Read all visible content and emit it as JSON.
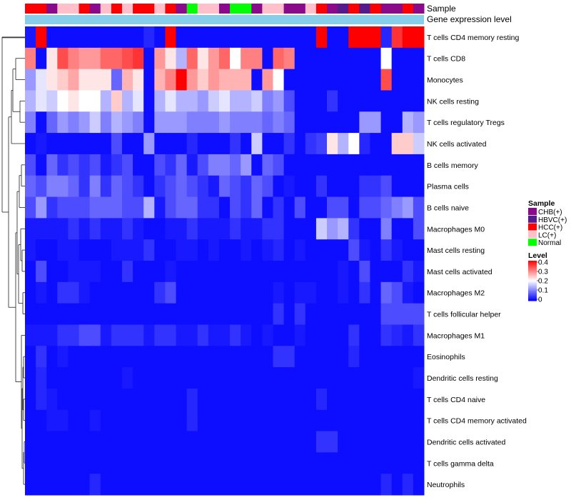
{
  "chart_data": {
    "type": "heatmap",
    "title": "",
    "annotation_tracks": [
      "Sample",
      "Gene expression level"
    ],
    "rows": [
      "T cells CD4 memory resting",
      "T cells CD8",
      "Monocytes",
      "NK cells resting",
      "T cells regulatory  Tregs",
      "NK cells activated",
      "B cells memory",
      "Plasma cells",
      "B cells naive",
      "Macrophages M0",
      "Mast cells resting",
      "Mast cells activated",
      "Macrophages M2",
      "T cells follicular helper",
      "Macrophages M1",
      "Eosinophils",
      "Dendritic cells resting",
      "T cells CD4 naive",
      "T cells CD4 memory activated",
      "Dendritic cells activated",
      "T cells gamma delta",
      "Neutrophils"
    ],
    "sample_classes": [
      "HCC(+)",
      "HCC(+)",
      "CHB(+)",
      "LC(+)",
      "LC(+)",
      "HCC(+)",
      "CHB(+)",
      "LC(+)",
      "HCC(+)",
      "LC(+)",
      "HCC(+)",
      "HCC(+)",
      "LC(+)",
      "HCC(+)",
      "CHB(+)",
      "Normal",
      "LC(+)",
      "LC(+)",
      "CHB(+)",
      "Normal",
      "Normal",
      "CHB(+)",
      "LC(+)",
      "LC(+)",
      "CHB(+)",
      "CHB(+)",
      "LC(+)",
      "HCC(+)",
      "CHB(+)",
      "HBVC(+)",
      "HCC(+)",
      "HBVC(+)",
      "HCC(+)",
      "CHB(+)",
      "CHB(+)",
      "HCC(+)",
      "CHB(+)"
    ],
    "values": [
      [
        0.02,
        0.4,
        0.01,
        0.01,
        0.01,
        0.01,
        0.01,
        0.01,
        0.01,
        0.01,
        0.01,
        0.03,
        0.01,
        0.4,
        0.01,
        0.01,
        0.01,
        0.01,
        0.01,
        0.01,
        0.01,
        0.01,
        0.01,
        0.01,
        0.01,
        0.01,
        0.01,
        0.4,
        0.01,
        0.01,
        0.4,
        0.4,
        0.4,
        0.03,
        0.36,
        0.4,
        0.4
      ],
      [
        0.3,
        0.01,
        0.22,
        0.34,
        0.3,
        0.28,
        0.28,
        0.32,
        0.32,
        0.34,
        0.36,
        0.01,
        0.28,
        0.22,
        0.14,
        0.32,
        0.22,
        0.28,
        0.32,
        0.2,
        0.3,
        0.3,
        0.01,
        0.32,
        0.3,
        0.01,
        0.01,
        0.01,
        0.01,
        0.01,
        0.01,
        0.01,
        0.01,
        0.2,
        0.01,
        0.01,
        0.01
      ],
      [
        0.12,
        0.18,
        0.22,
        0.24,
        0.27,
        0.22,
        0.22,
        0.22,
        0.08,
        0.26,
        0.22,
        0.01,
        0.26,
        0.3,
        0.4,
        0.28,
        0.24,
        0.28,
        0.26,
        0.26,
        0.26,
        0.01,
        0.28,
        0.2,
        0.01,
        0.01,
        0.01,
        0.01,
        0.01,
        0.01,
        0.01,
        0.01,
        0.01,
        0.34,
        0.01,
        0.01,
        0.01
      ],
      [
        0.14,
        0.18,
        0.16,
        0.2,
        0.22,
        0.2,
        0.2,
        0.14,
        0.24,
        0.14,
        0.18,
        0.01,
        0.14,
        0.18,
        0.14,
        0.14,
        0.12,
        0.16,
        0.18,
        0.14,
        0.14,
        0.16,
        0.1,
        0.12,
        0.06,
        0.01,
        0.01,
        0.01,
        0.04,
        0.01,
        0.01,
        0.01,
        0.01,
        0.01,
        0.01,
        0.01,
        0.01
      ],
      [
        0.1,
        0.01,
        0.08,
        0.12,
        0.1,
        0.12,
        0.16,
        0.1,
        0.14,
        0.12,
        0.1,
        0.01,
        0.12,
        0.12,
        0.12,
        0.1,
        0.1,
        0.1,
        0.12,
        0.1,
        0.1,
        0.1,
        0.08,
        0.1,
        0.08,
        0.01,
        0.01,
        0.01,
        0.01,
        0.01,
        0.01,
        0.12,
        0.12,
        0.01,
        0.01,
        0.14,
        0.12
      ],
      [
        0.01,
        0.02,
        0.01,
        0.01,
        0.01,
        0.01,
        0.01,
        0.01,
        0.06,
        0.01,
        0.01,
        0.12,
        0.01,
        0.01,
        0.01,
        0.03,
        0.01,
        0.01,
        0.01,
        0.04,
        0.01,
        0.16,
        0.01,
        0.01,
        0.04,
        0.01,
        0.04,
        0.05,
        0.22,
        0.14,
        0.2,
        0.03,
        0.01,
        0.01,
        0.24,
        0.24,
        0.16
      ],
      [
        0.06,
        0.01,
        0.08,
        0.04,
        0.06,
        0.04,
        0.06,
        0.02,
        0.04,
        0.06,
        0.01,
        0.01,
        0.06,
        0.04,
        0.08,
        0.02,
        0.06,
        0.1,
        0.1,
        0.08,
        0.12,
        0.01,
        0.08,
        0.06,
        0.01,
        0.01,
        0.01,
        0.01,
        0.01,
        0.01,
        0.01,
        0.01,
        0.01,
        0.01,
        0.01,
        0.01,
        0.01
      ],
      [
        0.08,
        0.06,
        0.1,
        0.1,
        0.08,
        0.04,
        0.1,
        0.04,
        0.08,
        0.06,
        0.04,
        0.01,
        0.04,
        0.06,
        0.08,
        0.06,
        0.04,
        0.02,
        0.08,
        0.06,
        0.04,
        0.08,
        0.06,
        0.01,
        0.02,
        0.01,
        0.01,
        0.04,
        0.01,
        0.01,
        0.01,
        0.04,
        0.04,
        0.06,
        0.01,
        0.01,
        0.01
      ],
      [
        0.06,
        0.12,
        0.04,
        0.06,
        0.06,
        0.06,
        0.08,
        0.08,
        0.08,
        0.06,
        0.06,
        0.14,
        0.02,
        0.06,
        0.08,
        0.08,
        0.04,
        0.04,
        0.01,
        0.06,
        0.04,
        0.08,
        0.01,
        0.04,
        0.01,
        0.06,
        0.01,
        0.01,
        0.06,
        0.06,
        0.01,
        0.06,
        0.06,
        0.08,
        0.1,
        0.12,
        0.06
      ],
      [
        0.02,
        0.02,
        0.02,
        0.02,
        0.04,
        0.02,
        0.04,
        0.02,
        0.02,
        0.04,
        0.02,
        0.01,
        0.01,
        0.02,
        0.02,
        0.04,
        0.02,
        0.02,
        0.02,
        0.04,
        0.02,
        0.02,
        0.04,
        0.04,
        0.01,
        0.01,
        0.01,
        0.16,
        0.12,
        0.14,
        0.04,
        0.01,
        0.01,
        0.1,
        0.01,
        0.01,
        0.06
      ],
      [
        0.02,
        0.01,
        0.01,
        0.02,
        0.02,
        0.01,
        0.01,
        0.01,
        0.02,
        0.02,
        0.02,
        0.04,
        0.01,
        0.01,
        0.02,
        0.02,
        0.01,
        0.02,
        0.01,
        0.01,
        0.02,
        0.01,
        0.02,
        0.03,
        0.01,
        0.02,
        0.01,
        0.01,
        0.01,
        0.01,
        0.06,
        0.02,
        0.01,
        0.04,
        0.02,
        0.01,
        0.01
      ],
      [
        0.01,
        0.06,
        0.01,
        0.01,
        0.02,
        0.02,
        0.02,
        0.01,
        0.01,
        0.04,
        0.01,
        0.01,
        0.01,
        0.02,
        0.01,
        0.01,
        0.01,
        0.01,
        0.01,
        0.01,
        0.01,
        0.01,
        0.01,
        0.01,
        0.01,
        0.01,
        0.01,
        0.01,
        0.01,
        0.02,
        0.01,
        0.06,
        0.01,
        0.01,
        0.01,
        0.04,
        0.02
      ],
      [
        0.01,
        0.02,
        0.01,
        0.04,
        0.04,
        0.02,
        0.01,
        0.01,
        0.01,
        0.01,
        0.01,
        0.01,
        0.04,
        0.06,
        0.01,
        0.01,
        0.01,
        0.01,
        0.01,
        0.01,
        0.01,
        0.01,
        0.01,
        0.02,
        0.01,
        0.02,
        0.02,
        0.01,
        0.01,
        0.02,
        0.01,
        0.04,
        0.01,
        0.08,
        0.06,
        0.02,
        0.01
      ],
      [
        0.01,
        0.01,
        0.01,
        0.01,
        0.01,
        0.01,
        0.01,
        0.01,
        0.01,
        0.01,
        0.01,
        0.01,
        0.01,
        0.01,
        0.01,
        0.01,
        0.01,
        0.01,
        0.01,
        0.01,
        0.01,
        0.01,
        0.01,
        0.04,
        0.01,
        0.04,
        0.01,
        0.01,
        0.01,
        0.01,
        0.01,
        0.01,
        0.01,
        0.06,
        0.06,
        0.06,
        0.06
      ],
      [
        0.02,
        0.02,
        0.02,
        0.04,
        0.04,
        0.06,
        0.06,
        0.02,
        0.04,
        0.04,
        0.04,
        0.02,
        0.04,
        0.04,
        0.02,
        0.02,
        0.04,
        0.02,
        0.02,
        0.04,
        0.02,
        0.01,
        0.02,
        0.01,
        0.01,
        0.02,
        0.01,
        0.01,
        0.01,
        0.01,
        0.04,
        0.01,
        0.01,
        0.04,
        0.03,
        0.02,
        0.04
      ],
      [
        0.01,
        0.04,
        0.01,
        0.02,
        0.01,
        0.01,
        0.01,
        0.01,
        0.01,
        0.01,
        0.01,
        0.01,
        0.01,
        0.01,
        0.01,
        0.01,
        0.01,
        0.01,
        0.01,
        0.01,
        0.01,
        0.01,
        0.01,
        0.04,
        0.04,
        0.01,
        0.01,
        0.01,
        0.01,
        0.01,
        0.03,
        0.01,
        0.01,
        0.01,
        0.01,
        0.01,
        0.01
      ],
      [
        0.01,
        0.03,
        0.01,
        0.01,
        0.01,
        0.01,
        0.01,
        0.01,
        0.01,
        0.02,
        0.01,
        0.01,
        0.01,
        0.01,
        0.01,
        0.01,
        0.01,
        0.01,
        0.01,
        0.01,
        0.01,
        0.01,
        0.01,
        0.01,
        0.01,
        0.01,
        0.01,
        0.01,
        0.01,
        0.01,
        0.01,
        0.01,
        0.01,
        0.01,
        0.01,
        0.01,
        0.02
      ],
      [
        0.01,
        0.03,
        0.02,
        0.01,
        0.01,
        0.01,
        0.01,
        0.01,
        0.01,
        0.01,
        0.01,
        0.01,
        0.01,
        0.01,
        0.01,
        0.03,
        0.01,
        0.01,
        0.01,
        0.01,
        0.01,
        0.01,
        0.01,
        0.01,
        0.01,
        0.01,
        0.01,
        0.03,
        0.01,
        0.01,
        0.01,
        0.01,
        0.01,
        0.01,
        0.01,
        0.01,
        0.01
      ],
      [
        0.01,
        0.01,
        0.02,
        0.02,
        0.01,
        0.01,
        0.02,
        0.01,
        0.01,
        0.01,
        0.01,
        0.01,
        0.01,
        0.01,
        0.01,
        0.03,
        0.01,
        0.01,
        0.01,
        0.01,
        0.01,
        0.01,
        0.01,
        0.01,
        0.01,
        0.01,
        0.01,
        0.01,
        0.01,
        0.01,
        0.01,
        0.01,
        0.01,
        0.01,
        0.01,
        0.01,
        0.01
      ],
      [
        0.01,
        0.01,
        0.01,
        0.01,
        0.01,
        0.01,
        0.01,
        0.01,
        0.01,
        0.01,
        0.01,
        0.01,
        0.01,
        0.01,
        0.01,
        0.01,
        0.01,
        0.01,
        0.01,
        0.01,
        0.01,
        0.01,
        0.01,
        0.01,
        0.01,
        0.01,
        0.01,
        0.04,
        0.04,
        0.01,
        0.01,
        0.01,
        0.01,
        0.01,
        0.01,
        0.01,
        0.01
      ],
      [
        0.01,
        0.01,
        0.01,
        0.01,
        0.01,
        0.01,
        0.01,
        0.01,
        0.01,
        0.01,
        0.01,
        0.01,
        0.01,
        0.01,
        0.01,
        0.01,
        0.01,
        0.01,
        0.01,
        0.01,
        0.01,
        0.01,
        0.01,
        0.01,
        0.01,
        0.01,
        0.01,
        0.01,
        0.01,
        0.01,
        0.01,
        0.01,
        0.01,
        0.01,
        0.01,
        0.01,
        0.01
      ],
      [
        0.01,
        0.01,
        0.01,
        0.01,
        0.01,
        0.01,
        0.03,
        0.01,
        0.01,
        0.01,
        0.01,
        0.01,
        0.01,
        0.01,
        0.01,
        0.01,
        0.01,
        0.01,
        0.01,
        0.01,
        0.01,
        0.01,
        0.01,
        0.01,
        0.01,
        0.01,
        0.01,
        0.01,
        0.01,
        0.01,
        0.01,
        0.01,
        0.01,
        0.03,
        0.01,
        0.03,
        0.01
      ]
    ],
    "legend_sample": {
      "title": "Sample",
      "items": [
        {
          "label": "CHB(+)",
          "color": "#8B0A8B"
        },
        {
          "label": "HBVC(+)",
          "color": "#551A8B"
        },
        {
          "label": "HCC(+)",
          "color": "#FF0000"
        },
        {
          "label": "LC(+)",
          "color": "#FFC0CB"
        },
        {
          "label": "Normal",
          "color": "#00FF00"
        }
      ]
    },
    "legend_level": {
      "title": "Level",
      "ticks": [
        "0.4",
        "0.3",
        "0.2",
        "0.1",
        "0"
      ],
      "range": [
        0,
        0.4
      ]
    },
    "colorscale": {
      "low": "#0000FF",
      "mid": "#FFFFFF",
      "high": "#FF0000"
    },
    "gene_expression_color": "#87CEEB",
    "legend_position": "right"
  }
}
